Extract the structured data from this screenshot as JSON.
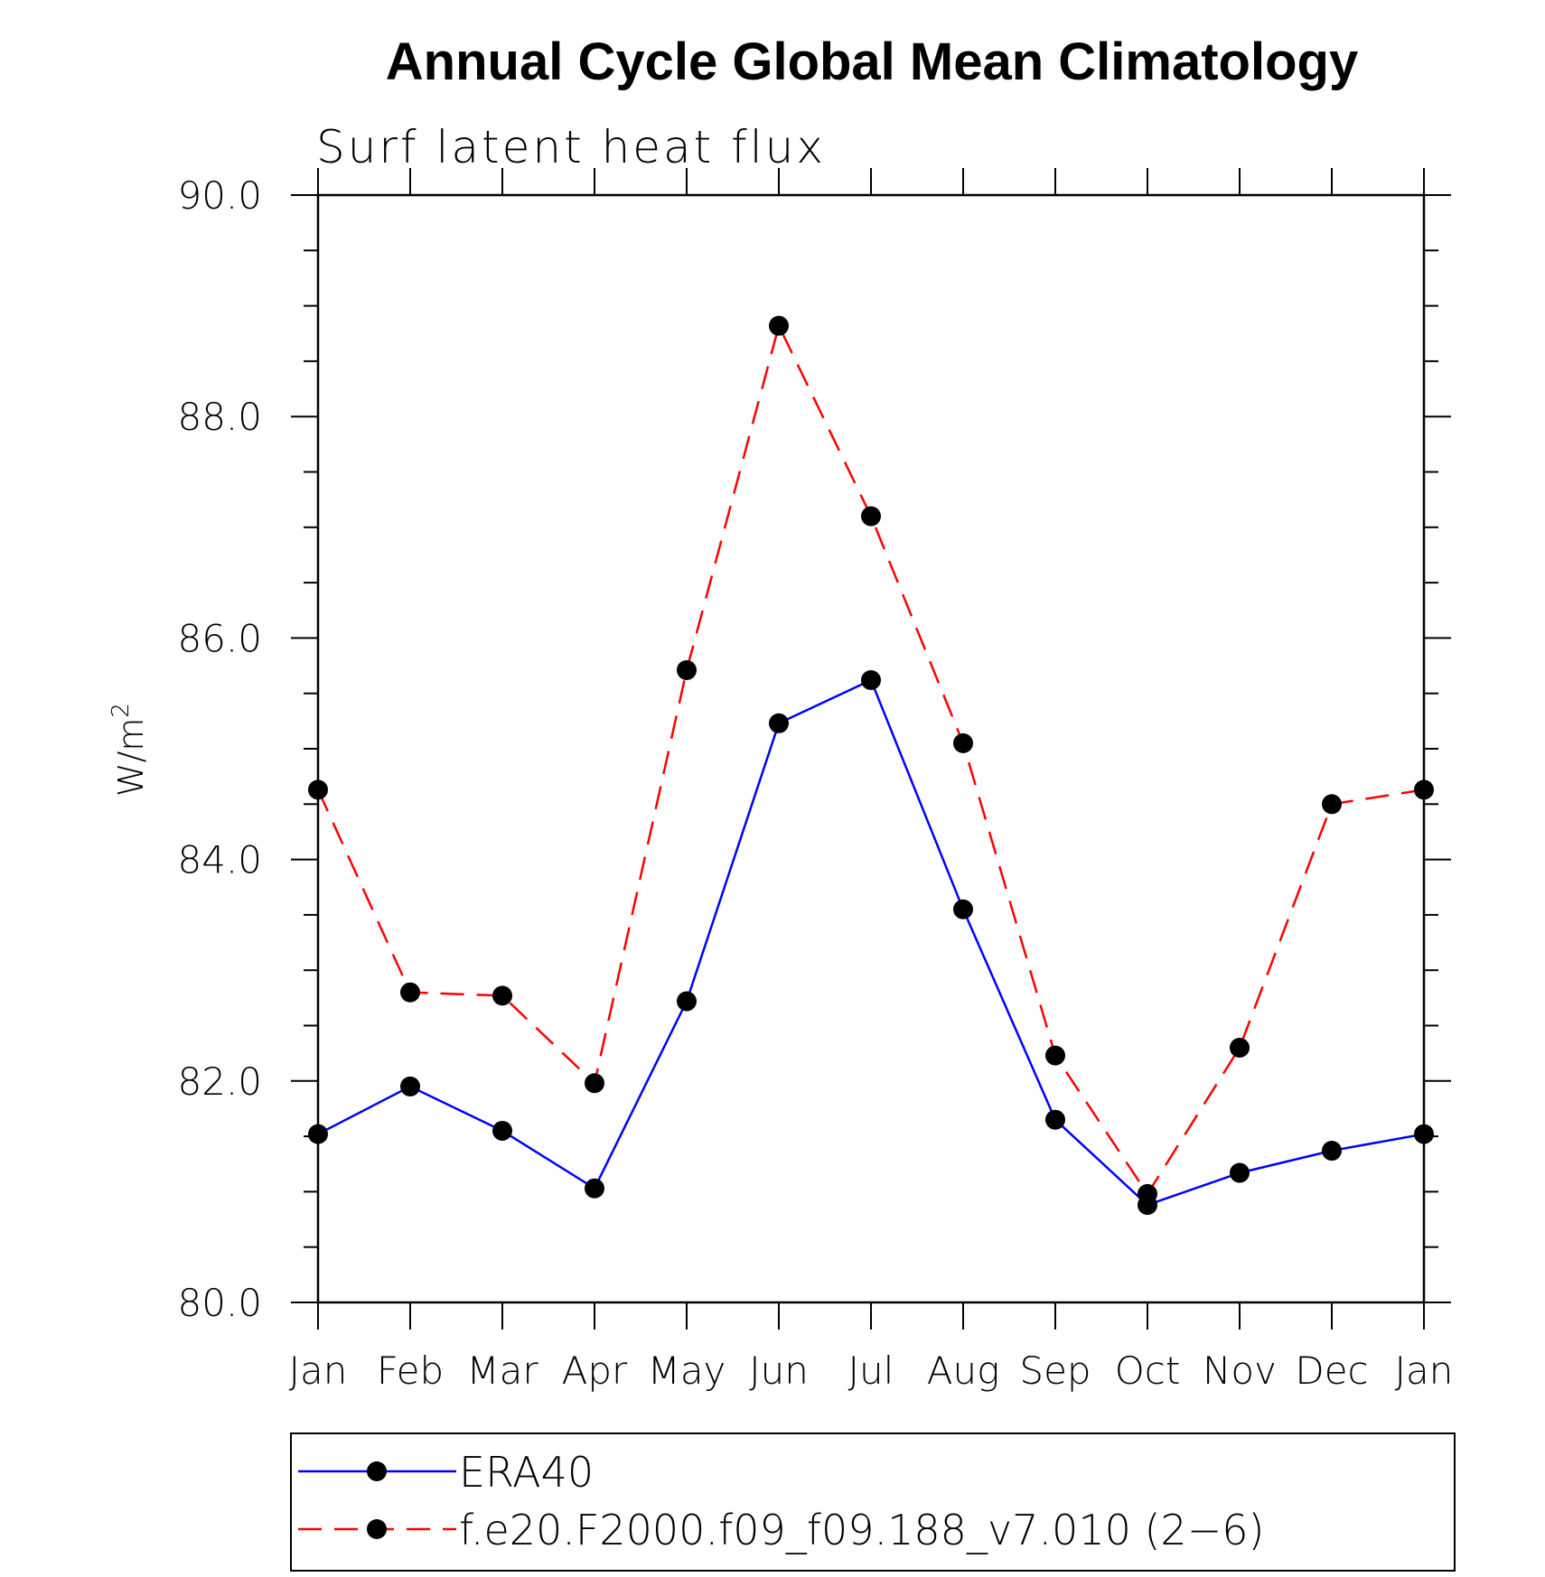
{
  "chart_data": {
    "type": "line",
    "title": "Annual Cycle Global Mean Climatology",
    "subtitle": "Surf latent heat flux",
    "ylabel": "W/m",
    "ylabel_sup": "2",
    "xlabel": "",
    "ylim": [
      80,
      90
    ],
    "yticks": [
      "80.0",
      "82.0",
      "84.0",
      "86.0",
      "88.0",
      "90.0"
    ],
    "categories": [
      "Jan",
      "Feb",
      "Mar",
      "Apr",
      "May",
      "Jun",
      "Jul",
      "Aug",
      "Sep",
      "Oct",
      "Nov",
      "Dec",
      "Jan"
    ],
    "series": [
      {
        "name": "ERA40",
        "color": "#0000ff",
        "dash": "solid",
        "values": [
          81.52,
          81.95,
          81.55,
          81.03,
          82.72,
          85.23,
          85.62,
          83.55,
          81.65,
          80.88,
          81.17,
          81.37,
          81.52
        ]
      },
      {
        "name": "f.e20.F2000.f09_f09.188_v7.010 (2−6)",
        "color": "#ff0000",
        "dash": "dashed",
        "values": [
          84.63,
          82.8,
          82.77,
          81.98,
          85.71,
          88.82,
          87.1,
          85.05,
          82.23,
          80.98,
          82.3,
          84.5,
          84.63
        ]
      }
    ],
    "legend_position": "bottom",
    "grid": false
  }
}
